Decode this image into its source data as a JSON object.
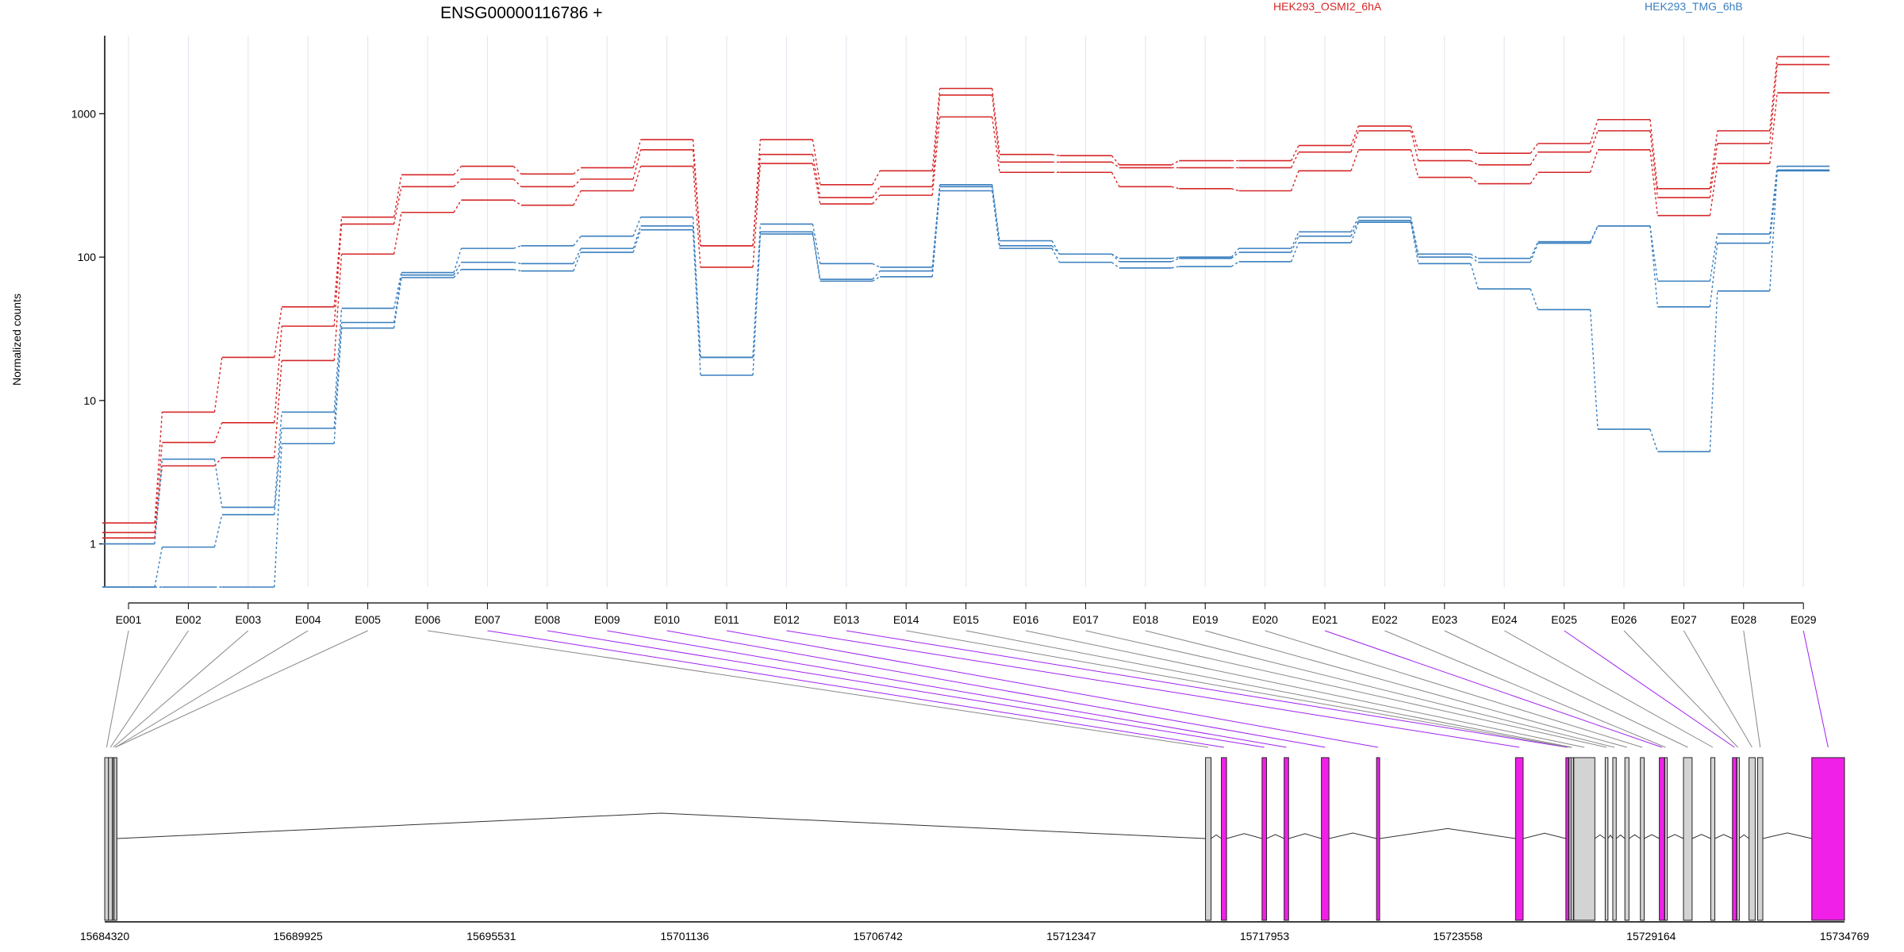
{
  "header": {
    "gene_label": "ENSG00000116786 +"
  },
  "legend": [
    {
      "label": "HEK293_OSMI2_6hA",
      "color": "#d62728"
    },
    {
      "label": "HEK293_TMG_6hB",
      "color": "#3a7fbf"
    }
  ],
  "colors": {
    "osmi": "#d62728",
    "tmg": "#3a7fbf",
    "exon_plain": "#d3d3d3",
    "exon_highlight": "#f020e8",
    "link_plain": "#888888",
    "link_highlight": "#a020f0"
  },
  "chart_data": {
    "type": "line",
    "yscale": "log",
    "ylabel": "Normalized counts",
    "ylim": [
      0.5,
      3500
    ],
    "yticks": [
      1,
      10,
      100,
      1000
    ],
    "ytick_labels": [
      "1",
      "10",
      "100",
      "1000"
    ],
    "categories": [
      "E001",
      "E002",
      "E003",
      "E004",
      "E005",
      "E006",
      "E007",
      "E008",
      "E009",
      "E010",
      "E011",
      "E012",
      "E013",
      "E014",
      "E015",
      "E016",
      "E017",
      "E018",
      "E019",
      "E020",
      "E021",
      "E022",
      "E023",
      "E024",
      "E025",
      "E026",
      "E027",
      "E028",
      "E029"
    ],
    "series": [
      {
        "group": "osmi",
        "values": [
          1.4,
          8.3,
          20,
          45,
          190,
          375,
          430,
          380,
          420,
          660,
          120,
          660,
          320,
          400,
          1500,
          520,
          510,
          440,
          470,
          470,
          600,
          820,
          560,
          530,
          620,
          910,
          300,
          760,
          2500
        ]
      },
      {
        "group": "osmi",
        "values": [
          1.2,
          5.1,
          7,
          33,
          170,
          310,
          350,
          310,
          350,
          560,
          120,
          520,
          260,
          310,
          1350,
          460,
          460,
          420,
          420,
          420,
          540,
          760,
          470,
          440,
          540,
          760,
          260,
          620,
          2200
        ]
      },
      {
        "group": "osmi",
        "values": [
          1.1,
          3.5,
          4,
          19,
          105,
          205,
          250,
          230,
          290,
          430,
          85,
          450,
          235,
          270,
          950,
          390,
          390,
          310,
          300,
          290,
          400,
          560,
          360,
          325,
          390,
          560,
          195,
          450,
          1400
        ]
      },
      {
        "group": "tmg",
        "values": [
          1.0,
          3.9,
          1.8,
          8.3,
          44,
          78,
          115,
          120,
          140,
          190,
          20,
          170,
          90,
          85,
          320,
          130,
          105,
          98,
          100,
          115,
          150,
          190,
          105,
          98,
          128,
          165,
          68,
          145,
          430
        ]
      },
      {
        "group": "tmg",
        "values": [
          0.5,
          0.95,
          1.6,
          6.4,
          35,
          75,
          92,
          90,
          115,
          165,
          20,
          150,
          70,
          80,
          310,
          120,
          105,
          93,
          98,
          108,
          140,
          180,
          100,
          92,
          125,
          165,
          45,
          125,
          405
        ]
      },
      {
        "group": "tmg",
        "values": [
          0.5,
          0.5,
          0.5,
          5,
          32,
          72,
          82,
          80,
          108,
          155,
          15,
          145,
          68,
          73,
          290,
          115,
          92,
          84,
          86,
          93,
          126,
          175,
          90,
          60,
          43,
          6.3,
          4.4,
          58,
          400
        ]
      }
    ],
    "genomic_axis": {
      "range": [
        15684320,
        15734769
      ],
      "tick_labels": [
        "15684320",
        "15689925",
        "15695531",
        "15701136",
        "15706742",
        "15712347",
        "15717953",
        "15723558",
        "15729164",
        "15734769"
      ]
    },
    "exon_segments": [
      {
        "id": "E001",
        "start": 15684320,
        "end": 15684430,
        "highlight": false
      },
      {
        "id": "E002",
        "start": 15684430,
        "end": 15684540,
        "highlight": false
      },
      {
        "id": "E003",
        "start": 15684540,
        "end": 15684590,
        "highlight": false
      },
      {
        "id": "E004",
        "start": 15684590,
        "end": 15684670,
        "highlight": false
      },
      {
        "id": "E005",
        "start": 15684670,
        "end": 15684580,
        "highlight": false
      },
      {
        "id": "E006",
        "start": 15716240,
        "end": 15716400,
        "highlight": false
      },
      {
        "id": "E007",
        "start": 15716700,
        "end": 15716850,
        "highlight": true
      },
      {
        "id": "E008",
        "start": 15717880,
        "end": 15718010,
        "highlight": true
      },
      {
        "id": "E009",
        "start": 15718520,
        "end": 15718650,
        "highlight": true
      },
      {
        "id": "E010",
        "start": 15719600,
        "end": 15719820,
        "highlight": true
      },
      {
        "id": "E011",
        "start": 15721200,
        "end": 15721290,
        "highlight": true
      },
      {
        "id": "E012",
        "start": 15725230,
        "end": 15725450,
        "highlight": true
      },
      {
        "id": "E013",
        "start": 15726690,
        "end": 15726770,
        "highlight": true
      },
      {
        "id": "E014",
        "start": 15726780,
        "end": 15726830,
        "highlight": false
      },
      {
        "id": "E015",
        "start": 15726840,
        "end": 15726900,
        "highlight": false
      },
      {
        "id": "E016",
        "start": 15726920,
        "end": 15727530,
        "highlight": false
      },
      {
        "id": "E017",
        "start": 15727830,
        "end": 15727910,
        "highlight": false
      },
      {
        "id": "E018",
        "start": 15728050,
        "end": 15728150,
        "highlight": false
      },
      {
        "id": "E019",
        "start": 15728400,
        "end": 15728520,
        "highlight": false
      },
      {
        "id": "E020",
        "start": 15728850,
        "end": 15728960,
        "highlight": false
      },
      {
        "id": "E021",
        "start": 15729400,
        "end": 15729550,
        "highlight": true
      },
      {
        "id": "E022",
        "start": 15729560,
        "end": 15729600,
        "highlight": false
      },
      {
        "id": "E023",
        "start": 15730100,
        "end": 15730350,
        "highlight": false
      },
      {
        "id": "E024",
        "start": 15730890,
        "end": 15731010,
        "highlight": false
      },
      {
        "id": "E025",
        "start": 15731520,
        "end": 15731640,
        "highlight": true
      },
      {
        "id": "E026",
        "start": 15731650,
        "end": 15731710,
        "highlight": false
      },
      {
        "id": "E027",
        "start": 15732000,
        "end": 15732180,
        "highlight": false
      },
      {
        "id": "E028",
        "start": 15732250,
        "end": 15732400,
        "highlight": false
      },
      {
        "id": "E029",
        "start": 15733820,
        "end": 15734769,
        "highlight": true
      }
    ]
  }
}
